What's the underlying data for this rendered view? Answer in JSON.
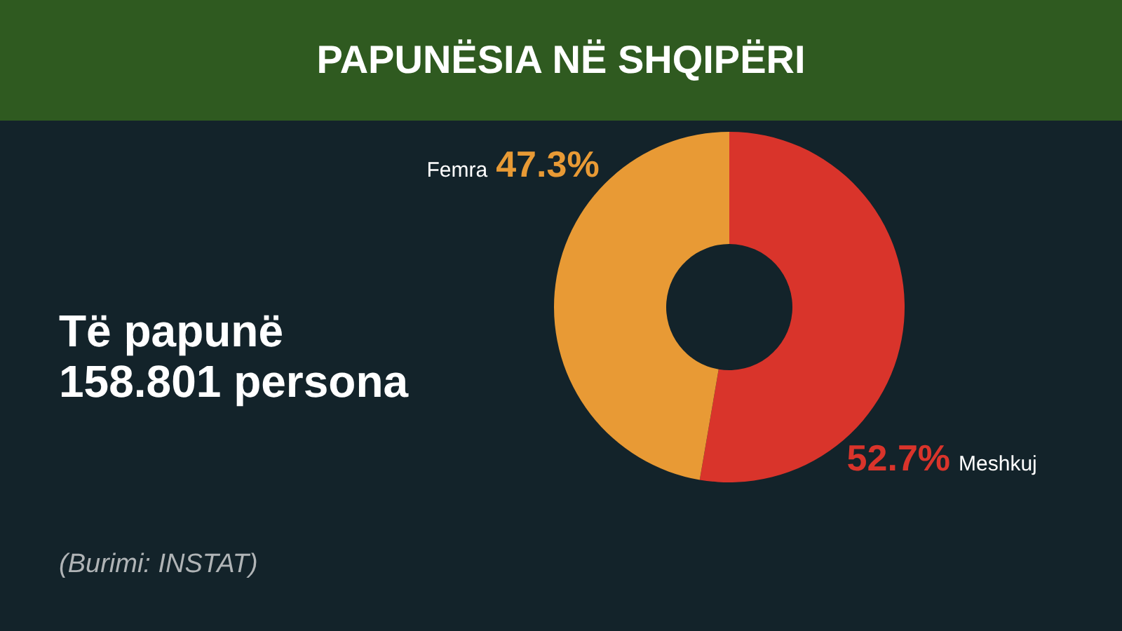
{
  "chart_data": {
    "type": "donut",
    "title": "PAPUNËSIA NË SHQIPËRI",
    "subtitle": "Të papunë\n158.801 persona",
    "categories": [
      "Meshkuj",
      "Femra"
    ],
    "values": [
      52.7,
      47.3
    ],
    "colors": [
      "#d9342b",
      "#e89a35"
    ],
    "value_labels": [
      "52.7%",
      "47.3%"
    ],
    "annotations": [
      "(Burimi: INSTAT)"
    ]
  }
}
